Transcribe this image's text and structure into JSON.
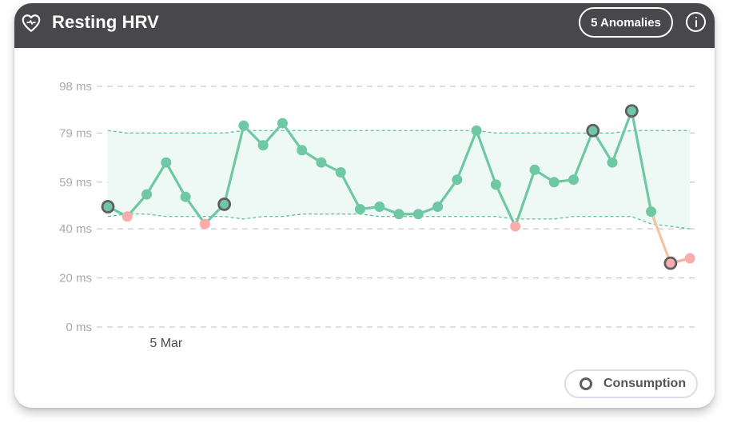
{
  "header": {
    "title": "Resting HRV",
    "anomalies_label": "5 Anomalies"
  },
  "legend": {
    "label": "Consumption"
  },
  "colors": {
    "header_bg": "#48474b",
    "line": "#6ec8a3",
    "band_fill": "#eef8f5",
    "band_edge": "#5fbf99",
    "anomaly_low": "#f8adab",
    "consumption_ring": "#5f5e63",
    "grid": "#c9c9cc",
    "tick_text": "#a9a9ad",
    "date_text": "#4a4a4e",
    "line_to_anomaly": "#f4c49d"
  },
  "icons": {
    "header_left": "heart-outline-icon",
    "header_right": "info-icon"
  },
  "chart_data": {
    "type": "line",
    "title": "Resting HRV",
    "xlabel": "",
    "ylabel": "",
    "y_tick_labels": [
      "98 ms",
      "79 ms",
      "59 ms",
      "40 ms",
      "20 ms",
      "0 ms"
    ],
    "y_ticks": [
      98,
      79,
      59,
      40,
      20,
      0
    ],
    "ylim": [
      0,
      98
    ],
    "x_tick_labels": [
      {
        "label": "5 Mar",
        "index": 3
      }
    ],
    "grid": "horizontal dashed",
    "legend_position": "bottom-right",
    "series": [
      {
        "name": "Resting HRV",
        "values": [
          49,
          45,
          54,
          67,
          53,
          42,
          50,
          82,
          74,
          83,
          72,
          67,
          63,
          48,
          49,
          46,
          46,
          49,
          60,
          80,
          58,
          41,
          64,
          59,
          60,
          80,
          67,
          88,
          47,
          26,
          28
        ],
        "anomaly_low_indices": [
          1,
          5,
          21,
          30
        ],
        "consumption_indices": [
          0,
          6,
          25,
          27,
          29
        ]
      }
    ],
    "normal_band": {
      "upper": [
        80,
        79,
        79,
        79,
        79,
        79,
        79,
        80,
        80,
        80,
        80,
        80,
        80,
        80,
        80,
        80,
        80,
        80,
        80,
        80,
        79,
        79,
        79,
        79,
        79,
        79,
        79,
        80,
        80,
        80,
        80
      ],
      "lower": [
        45,
        46,
        46,
        45,
        45,
        45,
        45,
        44,
        45,
        45,
        46,
        46,
        46,
        46,
        45,
        45,
        45,
        45,
        45,
        45,
        45,
        44,
        44,
        44,
        45,
        45,
        45,
        45,
        42,
        41,
        40
      ]
    }
  }
}
